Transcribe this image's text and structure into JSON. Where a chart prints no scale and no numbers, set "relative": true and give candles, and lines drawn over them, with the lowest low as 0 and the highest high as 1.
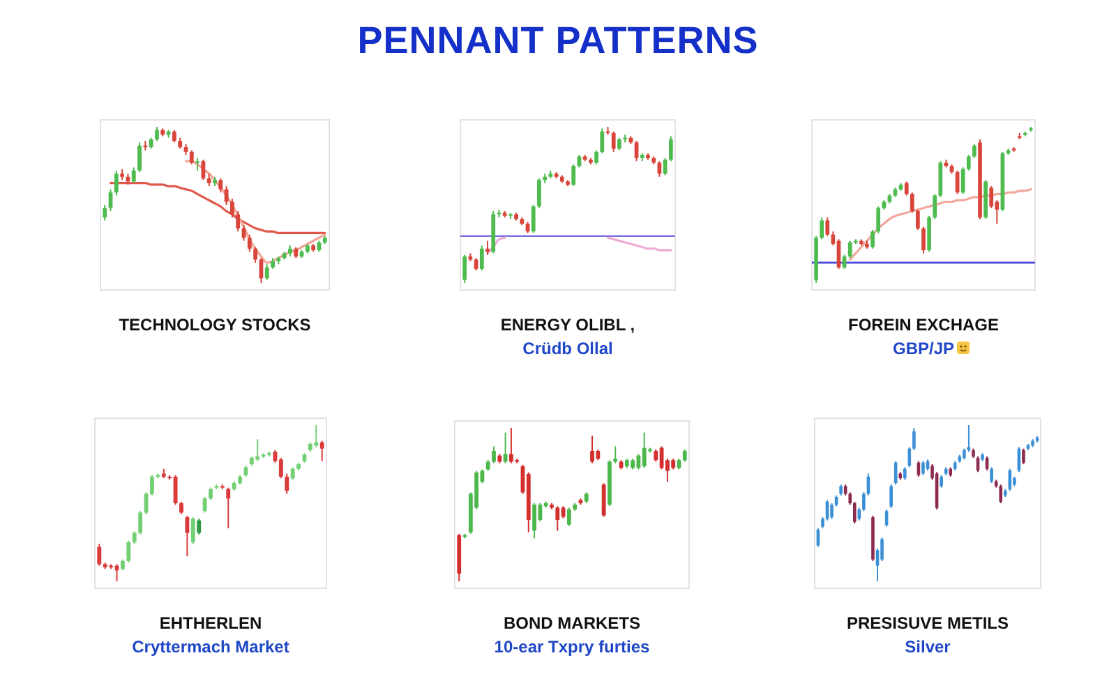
{
  "chart_data": [
    {
      "type": "other",
      "title": "PENNANT PATTERNS"
    },
    {
      "type": "candlestick",
      "title": "TECHNOLOGY STOCKS",
      "relative": true,
      "categories": [
        null,
        null,
        null,
        null,
        null,
        null,
        null,
        null,
        null,
        null,
        null,
        null,
        null,
        null,
        null,
        null,
        null,
        null,
        null,
        null,
        null,
        null,
        null,
        null,
        null,
        null,
        null,
        null,
        null,
        null,
        null,
        null,
        null,
        null,
        null,
        null,
        null,
        null,
        null
      ],
      "ohlc": [
        [
          0.42,
          0.5,
          0.4,
          0.48
        ],
        [
          0.48,
          0.6,
          0.46,
          0.58
        ],
        [
          0.58,
          0.72,
          0.56,
          0.7
        ],
        [
          0.7,
          0.73,
          0.66,
          0.68
        ],
        [
          0.68,
          0.7,
          0.63,
          0.65
        ],
        [
          0.65,
          0.74,
          0.64,
          0.72
        ],
        [
          0.72,
          0.9,
          0.71,
          0.88
        ],
        [
          0.88,
          0.91,
          0.85,
          0.87
        ],
        [
          0.87,
          0.93,
          0.86,
          0.92
        ],
        [
          0.92,
          1.0,
          0.91,
          0.98
        ],
        [
          0.98,
          0.99,
          0.94,
          0.95
        ],
        [
          0.95,
          0.98,
          0.93,
          0.97
        ],
        [
          0.97,
          0.98,
          0.9,
          0.91
        ],
        [
          0.91,
          0.93,
          0.86,
          0.87
        ],
        [
          0.87,
          0.89,
          0.82,
          0.84
        ],
        [
          0.84,
          0.85,
          0.76,
          0.77
        ],
        [
          0.77,
          0.8,
          0.72,
          0.78
        ],
        [
          0.78,
          0.79,
          0.66,
          0.67
        ],
        [
          0.67,
          0.7,
          0.62,
          0.64
        ],
        [
          0.64,
          0.68,
          0.62,
          0.66
        ],
        [
          0.66,
          0.67,
          0.58,
          0.6
        ],
        [
          0.6,
          0.62,
          0.5,
          0.52
        ],
        [
          0.52,
          0.54,
          0.42,
          0.44
        ],
        [
          0.44,
          0.46,
          0.33,
          0.35
        ],
        [
          0.35,
          0.37,
          0.27,
          0.29
        ],
        [
          0.29,
          0.31,
          0.2,
          0.22
        ],
        [
          0.22,
          0.23,
          0.13,
          0.15
        ],
        [
          0.15,
          0.16,
          0.0,
          0.03
        ],
        [
          0.03,
          0.12,
          0.02,
          0.1
        ],
        [
          0.1,
          0.16,
          0.09,
          0.14
        ],
        [
          0.14,
          0.17,
          0.12,
          0.16
        ],
        [
          0.16,
          0.2,
          0.15,
          0.19
        ],
        [
          0.19,
          0.24,
          0.17,
          0.22
        ],
        [
          0.22,
          0.23,
          0.16,
          0.17
        ],
        [
          0.17,
          0.21,
          0.16,
          0.2
        ],
        [
          0.2,
          0.25,
          0.19,
          0.24
        ],
        [
          0.24,
          0.25,
          0.2,
          0.21
        ],
        [
          0.21,
          0.27,
          0.2,
          0.26
        ],
        [
          0.26,
          0.3,
          0.25,
          0.29
        ]
      ],
      "colors": [
        "#4dbb4d",
        "#4dbb4d",
        "#4dbb4d",
        "#d9453a",
        "#d9453a",
        "#4dbb4d",
        "#4dbb4d",
        "#d9453a",
        "#4dbb4d",
        "#4dbb4d",
        "#d9453a",
        "#4dbb4d",
        "#d9453a",
        "#d9453a",
        "#d9453a",
        "#d9453a",
        "#4dbb4d",
        "#d9453a",
        "#d9453a",
        "#4dbb4d",
        "#d9453a",
        "#d9453a",
        "#d9453a",
        "#d9453a",
        "#d9453a",
        "#d9453a",
        "#d9453a",
        "#d9453a",
        "#4dbb4d",
        "#4dbb4d",
        "#4dbb4d",
        "#4dbb4d",
        "#4dbb4d",
        "#d9453a",
        "#4dbb4d",
        "#4dbb4d",
        "#d9453a",
        "#4dbb4d",
        "#4dbb4d"
      ],
      "series": [
        {
          "type": "line",
          "color": "#e0574c",
          "values": [
            null,
            0.64,
            0.64,
            0.64,
            0.64,
            0.64,
            0.64,
            0.64,
            0.63,
            0.63,
            0.63,
            0.62,
            0.62,
            0.61,
            0.6,
            0.59,
            0.57,
            0.55,
            0.53,
            0.51,
            0.49,
            0.46,
            0.44,
            0.41,
            0.39,
            0.37,
            0.35,
            0.34,
            0.33,
            0.33,
            0.32,
            0.32,
            0.32,
            0.32,
            0.32,
            0.32,
            0.32,
            0.32,
            0.32
          ]
        },
        {
          "type": "line",
          "color": "#f0a596",
          "values": [
            null,
            null,
            null,
            null,
            null,
            null,
            null,
            null,
            null,
            null,
            null,
            null,
            null,
            null,
            0.78,
            0.78,
            0.76,
            0.73,
            0.7,
            0.66,
            0.61,
            0.56,
            0.5,
            0.43,
            0.36,
            0.28,
            0.22,
            0.17,
            0.13,
            0.14,
            0.16,
            0.18,
            0.2,
            0.21,
            0.23,
            0.25,
            0.27,
            0.29,
            0.31
          ]
        }
      ]
    },
    {
      "type": "candlestick",
      "title": "ENERGY OLIBL ,",
      "subtitle": "Crüdb Ollal",
      "relative": true,
      "categories": [
        null,
        null,
        null,
        null,
        null,
        null,
        null,
        null,
        null,
        null,
        null,
        null,
        null,
        null,
        null,
        null,
        null,
        null,
        null,
        null,
        null,
        null,
        null,
        null,
        null,
        null,
        null,
        null,
        null,
        null,
        null,
        null,
        null,
        null,
        null,
        null,
        null
      ],
      "ohlc": [
        [
          0.02,
          0.18,
          0.0,
          0.17
        ],
        [
          0.17,
          0.19,
          0.14,
          0.15
        ],
        [
          0.15,
          0.16,
          0.08,
          0.09
        ],
        [
          0.09,
          0.24,
          0.08,
          0.22
        ],
        [
          0.22,
          0.27,
          0.18,
          0.2
        ],
        [
          0.2,
          0.46,
          0.19,
          0.44
        ],
        [
          0.44,
          0.47,
          0.42,
          0.45
        ],
        [
          0.45,
          0.46,
          0.42,
          0.43
        ],
        [
          0.43,
          0.45,
          0.41,
          0.44
        ],
        [
          0.44,
          0.45,
          0.4,
          0.41
        ],
        [
          0.41,
          0.42,
          0.37,
          0.38
        ],
        [
          0.38,
          0.39,
          0.32,
          0.33
        ],
        [
          0.33,
          0.5,
          0.32,
          0.49
        ],
        [
          0.49,
          0.67,
          0.48,
          0.66
        ],
        [
          0.66,
          0.7,
          0.64,
          0.68
        ],
        [
          0.68,
          0.72,
          0.67,
          0.7
        ],
        [
          0.7,
          0.71,
          0.67,
          0.68
        ],
        [
          0.68,
          0.69,
          0.64,
          0.65
        ],
        [
          0.65,
          0.66,
          0.62,
          0.63
        ],
        [
          0.63,
          0.76,
          0.62,
          0.75
        ],
        [
          0.75,
          0.82,
          0.74,
          0.81
        ],
        [
          0.81,
          0.82,
          0.78,
          0.79
        ],
        [
          0.79,
          0.8,
          0.76,
          0.77
        ],
        [
          0.77,
          0.85,
          0.76,
          0.84
        ],
        [
          0.84,
          0.99,
          0.83,
          0.97
        ],
        [
          0.97,
          1.0,
          0.95,
          0.96
        ],
        [
          0.96,
          0.97,
          0.84,
          0.86
        ],
        [
          0.86,
          0.93,
          0.85,
          0.92
        ],
        [
          0.92,
          0.95,
          0.9,
          0.93
        ],
        [
          0.93,
          0.94,
          0.89,
          0.9
        ],
        [
          0.9,
          0.91,
          0.78,
          0.8
        ],
        [
          0.8,
          0.83,
          0.78,
          0.82
        ],
        [
          0.82,
          0.83,
          0.79,
          0.8
        ],
        [
          0.8,
          0.81,
          0.76,
          0.77
        ],
        [
          0.77,
          0.78,
          0.68,
          0.7
        ],
        [
          0.7,
          0.8,
          0.69,
          0.79
        ],
        [
          0.79,
          0.94,
          0.78,
          0.92
        ]
      ],
      "colors": [
        "#4dbb4d",
        "#d9453a",
        "#d9453a",
        "#4dbb4d",
        "#d9453a",
        "#4dbb4d",
        "#4dbb4d",
        "#d9453a",
        "#4dbb4d",
        "#d9453a",
        "#d9453a",
        "#d9453a",
        "#4dbb4d",
        "#4dbb4d",
        "#4dbb4d",
        "#4dbb4d",
        "#d9453a",
        "#d9453a",
        "#d9453a",
        "#4dbb4d",
        "#4dbb4d",
        "#d9453a",
        "#d9453a",
        "#4dbb4d",
        "#4dbb4d",
        "#d9453a",
        "#d9453a",
        "#4dbb4d",
        "#4dbb4d",
        "#d9453a",
        "#d9453a",
        "#4dbb4d",
        "#d9453a",
        "#d9453a",
        "#d9453a",
        "#4dbb4d",
        "#4dbb4d"
      ],
      "series": [
        {
          "type": "line",
          "color": "#eeaad6",
          "values": [
            null,
            null,
            null,
            null,
            0.19,
            0.23,
            0.28,
            0.29,
            null,
            null,
            null,
            null,
            null,
            null,
            null,
            null,
            null,
            null,
            null,
            null,
            null,
            null,
            null,
            null,
            null,
            0.29,
            0.28,
            0.27,
            0.26,
            0.25,
            0.24,
            0.23,
            0.22,
            0.22,
            0.21,
            0.21,
            0.21
          ]
        }
      ],
      "ref_lines": [
        {
          "axis": "y",
          "value": 0.3,
          "color": "#7a6ee0"
        }
      ]
    },
    {
      "type": "candlestick",
      "title": "FOREIN EXCHAGE",
      "subtitle": "GBP/JP",
      "relative": true,
      "categories": [
        null,
        null,
        null,
        null,
        null,
        null,
        null,
        null,
        null,
        null,
        null,
        null,
        null,
        null,
        null,
        null,
        null,
        null,
        null,
        null,
        null,
        null,
        null,
        null,
        null,
        null,
        null,
        null,
        null,
        null,
        null,
        null,
        null,
        null,
        null,
        null,
        null,
        null,
        null
      ],
      "ohlc": [
        [
          0.02,
          0.3,
          0.0,
          0.29
        ],
        [
          0.29,
          0.42,
          0.28,
          0.4
        ],
        [
          0.4,
          0.42,
          0.3,
          0.31
        ],
        [
          0.31,
          0.33,
          0.24,
          0.25
        ],
        [
          0.27,
          0.28,
          0.09,
          0.1
        ],
        [
          0.1,
          0.18,
          0.09,
          0.17
        ],
        [
          0.17,
          0.27,
          0.16,
          0.26
        ],
        [
          0.26,
          0.28,
          0.25,
          0.27
        ],
        [
          0.27,
          0.28,
          0.24,
          0.25
        ],
        [
          0.25,
          0.27,
          0.22,
          0.23
        ],
        [
          0.23,
          0.34,
          0.22,
          0.33
        ],
        [
          0.33,
          0.49,
          0.32,
          0.48
        ],
        [
          0.48,
          0.53,
          0.47,
          0.52
        ],
        [
          0.52,
          0.57,
          0.51,
          0.56
        ],
        [
          0.56,
          0.61,
          0.55,
          0.6
        ],
        [
          0.6,
          0.64,
          0.59,
          0.63
        ],
        [
          0.64,
          0.65,
          0.56,
          0.57
        ],
        [
          0.57,
          0.58,
          0.45,
          0.46
        ],
        [
          0.46,
          0.47,
          0.34,
          0.35
        ],
        [
          0.35,
          0.36,
          0.19,
          0.21
        ],
        [
          0.21,
          0.43,
          0.2,
          0.42
        ],
        [
          0.42,
          0.57,
          0.41,
          0.56
        ],
        [
          0.56,
          0.78,
          0.55,
          0.77
        ],
        [
          0.77,
          0.79,
          0.74,
          0.75
        ],
        [
          0.75,
          0.76,
          0.7,
          0.71
        ],
        [
          0.71,
          0.72,
          0.57,
          0.58
        ],
        [
          0.58,
          0.74,
          0.57,
          0.73
        ],
        [
          0.73,
          0.82,
          0.72,
          0.81
        ],
        [
          0.81,
          0.89,
          0.8,
          0.88
        ],
        [
          0.9,
          0.92,
          0.41,
          0.42
        ],
        [
          0.42,
          0.66,
          0.41,
          0.65
        ],
        [
          0.61,
          0.62,
          0.48,
          0.49
        ],
        [
          0.52,
          0.53,
          0.38,
          0.47
        ],
        [
          0.47,
          0.84,
          0.46,
          0.83
        ],
        [
          0.83,
          0.86,
          0.82,
          0.85
        ],
        [
          0.86,
          0.87,
          0.84,
          0.85
        ],
        [
          0.94,
          0.96,
          0.92,
          0.93
        ],
        [
          0.95,
          0.97,
          0.94,
          0.96
        ],
        [
          0.98,
          1.0,
          0.97,
          0.99
        ]
      ],
      "colors": [
        "#4dbb4d",
        "#4dbb4d",
        "#d9453a",
        "#d9453a",
        "#d9453a",
        "#4dbb4d",
        "#4dbb4d",
        "#4dbb4d",
        "#d9453a",
        "#d9453a",
        "#4dbb4d",
        "#4dbb4d",
        "#4dbb4d",
        "#4dbb4d",
        "#4dbb4d",
        "#4dbb4d",
        "#d9453a",
        "#d9453a",
        "#d9453a",
        "#d9453a",
        "#4dbb4d",
        "#4dbb4d",
        "#4dbb4d",
        "#d9453a",
        "#d9453a",
        "#d9453a",
        "#4dbb4d",
        "#4dbb4d",
        "#4dbb4d",
        "#d9453a",
        "#4dbb4d",
        "#d9453a",
        "#d9453a",
        "#4dbb4d",
        "#4dbb4d",
        "#d9453a",
        "#d9453a",
        "#4dbb4d",
        "#4dbb4d"
      ],
      "series": [
        {
          "type": "line",
          "color": "#f2a79c",
          "values": [
            null,
            null,
            null,
            null,
            null,
            null,
            0.15,
            0.19,
            0.23,
            0.27,
            0.31,
            0.35,
            0.38,
            0.41,
            0.43,
            0.44,
            0.45,
            0.46,
            0.47,
            0.48,
            0.49,
            0.5,
            0.51,
            0.52,
            0.52,
            0.53,
            0.53,
            0.54,
            0.55,
            0.55,
            0.56,
            0.56,
            0.57,
            0.57,
            0.58,
            0.58,
            0.59,
            0.59,
            0.6
          ]
        }
      ],
      "ref_lines": [
        {
          "axis": "y",
          "value": 0.13,
          "color": "#4a4ae0"
        }
      ]
    },
    {
      "type": "candlestick",
      "title": "EHTHERLEN",
      "subtitle": "Cryttermach Market",
      "relative": true,
      "categories": [
        null,
        null,
        null,
        null,
        null,
        null,
        null,
        null,
        null,
        null,
        null,
        null,
        null,
        null,
        null,
        null,
        null,
        null,
        null,
        null,
        null,
        null,
        null,
        null,
        null,
        null,
        null,
        null,
        null,
        null,
        null,
        null,
        null,
        null,
        null,
        null,
        null,
        null,
        null
      ],
      "ohlc": [
        [
          0.22,
          0.24,
          0.1,
          0.11
        ],
        [
          0.11,
          0.12,
          0.08,
          0.09
        ],
        [
          0.1,
          0.11,
          0.08,
          0.09
        ],
        [
          0.1,
          0.11,
          0.0,
          0.07
        ],
        [
          0.08,
          0.14,
          0.07,
          0.13
        ],
        [
          0.13,
          0.26,
          0.12,
          0.25
        ],
        [
          0.25,
          0.32,
          0.24,
          0.31
        ],
        [
          0.31,
          0.45,
          0.3,
          0.44
        ],
        [
          0.44,
          0.57,
          0.43,
          0.56
        ],
        [
          0.56,
          0.68,
          0.55,
          0.67
        ],
        [
          0.67,
          0.69,
          0.66,
          0.68
        ],
        [
          0.69,
          0.72,
          0.66,
          0.67
        ],
        [
          0.67,
          0.68,
          0.65,
          0.66
        ],
        [
          0.67,
          0.68,
          0.49,
          0.5
        ],
        [
          0.5,
          0.51,
          0.43,
          0.44
        ],
        [
          0.41,
          0.42,
          0.16,
          0.31
        ],
        [
          0.25,
          0.41,
          0.24,
          0.4
        ],
        [
          0.31,
          0.4,
          0.3,
          0.39
        ],
        [
          0.45,
          0.54,
          0.44,
          0.53
        ],
        [
          0.53,
          0.6,
          0.52,
          0.59
        ],
        [
          0.6,
          0.62,
          0.59,
          0.61
        ],
        [
          0.61,
          0.62,
          0.59,
          0.6
        ],
        [
          0.59,
          0.6,
          0.34,
          0.53
        ],
        [
          0.59,
          0.64,
          0.58,
          0.63
        ],
        [
          0.63,
          0.68,
          0.62,
          0.67
        ],
        [
          0.68,
          0.74,
          0.67,
          0.73
        ],
        [
          0.75,
          0.8,
          0.74,
          0.79
        ],
        [
          0.78,
          0.91,
          0.77,
          0.8
        ],
        [
          0.8,
          0.82,
          0.79,
          0.81
        ],
        [
          0.81,
          0.83,
          0.8,
          0.82
        ],
        [
          0.83,
          0.84,
          0.76,
          0.77
        ],
        [
          0.78,
          0.79,
          0.66,
          0.67
        ],
        [
          0.67,
          0.69,
          0.56,
          0.58
        ],
        [
          0.66,
          0.73,
          0.65,
          0.72
        ],
        [
          0.72,
          0.76,
          0.71,
          0.75
        ],
        [
          0.77,
          0.82,
          0.76,
          0.81
        ],
        [
          0.84,
          0.89,
          0.83,
          0.88
        ],
        [
          0.87,
          1.0,
          0.86,
          0.89
        ],
        [
          0.89,
          0.9,
          0.77,
          0.85
        ]
      ],
      "colors": [
        "#d93a3a",
        "#d93a3a",
        "#d93a3a",
        "#d93a3a",
        "#74d074",
        "#74d074",
        "#74d074",
        "#74d074",
        "#74d074",
        "#74d074",
        "#74d074",
        "#d93a3a",
        "#d93a3a",
        "#d93a3a",
        "#d93a3a",
        "#d93a3a",
        "#74d074",
        "#2f9a44",
        "#74d074",
        "#74d074",
        "#74d074",
        "#d93a3a",
        "#d93a3a",
        "#74d074",
        "#74d074",
        "#74d074",
        "#74d074",
        "#74d074",
        "#74d074",
        "#74d074",
        "#d93a3a",
        "#d93a3a",
        "#d93a3a",
        "#74d074",
        "#74d074",
        "#74d074",
        "#74d074",
        "#74d074",
        "#d93a3a"
      ]
    },
    {
      "type": "candlestick",
      "title": "BOND MARKETS",
      "subtitle": "10-ear Txpry furties",
      "relative": true,
      "categories": [
        null,
        null,
        null,
        null,
        null,
        null,
        null,
        null,
        null,
        null,
        null,
        null,
        null,
        null,
        null,
        null,
        null,
        null,
        null,
        null,
        null,
        null,
        null,
        null,
        null,
        null,
        null,
        null,
        null,
        null,
        null,
        null,
        null,
        null,
        null,
        null,
        null,
        null,
        null,
        null
      ],
      "ohlc": [
        [
          0.3,
          0.31,
          0.0,
          0.05
        ],
        [
          0.29,
          0.31,
          0.28,
          0.3
        ],
        [
          0.32,
          0.58,
          0.31,
          0.57
        ],
        [
          0.48,
          0.72,
          0.47,
          0.71
        ],
        [
          0.65,
          0.73,
          0.64,
          0.72
        ],
        [
          0.73,
          0.79,
          0.72,
          0.78
        ],
        [
          0.78,
          0.88,
          0.77,
          0.85
        ],
        [
          0.82,
          0.83,
          0.77,
          0.78
        ],
        [
          0.78,
          0.97,
          0.77,
          0.83
        ],
        [
          0.83,
          1.0,
          0.77,
          0.78
        ],
        [
          0.79,
          0.8,
          0.77,
          0.78
        ],
        [
          0.75,
          0.76,
          0.57,
          0.58
        ],
        [
          0.7,
          0.71,
          0.32,
          0.4
        ],
        [
          0.33,
          0.51,
          0.28,
          0.5
        ],
        [
          0.4,
          0.51,
          0.39,
          0.5
        ],
        [
          0.49,
          0.52,
          0.48,
          0.51
        ],
        [
          0.5,
          0.51,
          0.47,
          0.48
        ],
        [
          0.48,
          0.49,
          0.33,
          0.4
        ],
        [
          0.48,
          0.49,
          0.41,
          0.42
        ],
        [
          0.37,
          0.48,
          0.36,
          0.47
        ],
        [
          0.47,
          0.51,
          0.46,
          0.5
        ],
        [
          0.53,
          0.54,
          0.5,
          0.51
        ],
        [
          0.52,
          0.58,
          0.51,
          0.57
        ],
        [
          0.85,
          0.95,
          0.77,
          0.78
        ],
        [
          0.85,
          0.86,
          0.79,
          0.8
        ],
        [
          0.63,
          0.64,
          0.42,
          0.43
        ],
        [
          0.5,
          0.79,
          0.49,
          0.78
        ],
        [
          0.78,
          0.88,
          0.77,
          0.8
        ],
        [
          0.78,
          0.79,
          0.73,
          0.74
        ],
        [
          0.75,
          0.8,
          0.74,
          0.79
        ],
        [
          0.74,
          0.8,
          0.73,
          0.79
        ],
        [
          0.74,
          0.83,
          0.73,
          0.82
        ],
        [
          0.75,
          0.97,
          0.74,
          0.87
        ],
        [
          0.85,
          0.87,
          0.84,
          0.86
        ],
        [
          0.85,
          0.86,
          0.78,
          0.79
        ],
        [
          0.87,
          0.88,
          0.73,
          0.74
        ],
        [
          0.79,
          0.8,
          0.65,
          0.72
        ],
        [
          0.79,
          0.8,
          0.73,
          0.74
        ],
        [
          0.74,
          0.8,
          0.73,
          0.79
        ],
        [
          0.79,
          0.86,
          0.78,
          0.85
        ]
      ],
      "colors": [
        "#d32f2f",
        "#4cb84c",
        "#4cb84c",
        "#4cb84c",
        "#4cb84c",
        "#4cb84c",
        "#4cb84c",
        "#d32f2f",
        "#4cb84c",
        "#d32f2f",
        "#d32f2f",
        "#d32f2f",
        "#d32f2f",
        "#4cb84c",
        "#4cb84c",
        "#4cb84c",
        "#d32f2f",
        "#d32f2f",
        "#d32f2f",
        "#4cb84c",
        "#4cb84c",
        "#d32f2f",
        "#4cb84c",
        "#d32f2f",
        "#d32f2f",
        "#d32f2f",
        "#4cb84c",
        "#4cb84c",
        "#d32f2f",
        "#4cb84c",
        "#4cb84c",
        "#4cb84c",
        "#4cb84c",
        "#4cb84c",
        "#d32f2f",
        "#d32f2f",
        "#d32f2f",
        "#d32f2f",
        "#4cb84c",
        "#4cb84c"
      ]
    },
    {
      "type": "candlestick",
      "title": "PRESISUVE METILS",
      "subtitle": "Silver",
      "relative": true,
      "categories": [
        null,
        null,
        null,
        null,
        null,
        null,
        null,
        null,
        null,
        null,
        null,
        null,
        null,
        null,
        null,
        null,
        null,
        null,
        null,
        null,
        null,
        null,
        null,
        null,
        null,
        null,
        null,
        null,
        null,
        null,
        null,
        null,
        null,
        null,
        null,
        null,
        null,
        null,
        null,
        null,
        null,
        null,
        null,
        null,
        null,
        null,
        null,
        null,
        null
      ],
      "ohlc": [
        [
          0.23,
          0.34,
          0.22,
          0.33
        ],
        [
          0.35,
          0.41,
          0.34,
          0.4
        ],
        [
          0.4,
          0.52,
          0.39,
          0.51
        ],
        [
          0.41,
          0.5,
          0.4,
          0.49
        ],
        [
          0.49,
          0.55,
          0.48,
          0.54
        ],
        [
          0.56,
          0.62,
          0.55,
          0.61
        ],
        [
          0.61,
          0.62,
          0.55,
          0.56
        ],
        [
          0.56,
          0.57,
          0.49,
          0.5
        ],
        [
          0.5,
          0.51,
          0.37,
          0.38
        ],
        [
          0.4,
          0.47,
          0.39,
          0.46
        ],
        [
          0.46,
          0.57,
          0.45,
          0.56
        ],
        [
          0.56,
          0.69,
          0.55,
          0.67
        ],
        [
          0.41,
          0.42,
          0.13,
          0.14
        ],
        [
          0.1,
          0.21,
          0.0,
          0.2
        ],
        [
          0.14,
          0.28,
          0.13,
          0.27
        ],
        [
          0.36,
          0.46,
          0.35,
          0.45
        ],
        [
          0.48,
          0.62,
          0.47,
          0.61
        ],
        [
          0.63,
          0.77,
          0.62,
          0.76
        ],
        [
          0.69,
          0.7,
          0.65,
          0.66
        ],
        [
          0.66,
          0.73,
          0.65,
          0.72
        ],
        [
          0.74,
          0.86,
          0.73,
          0.85
        ],
        [
          0.85,
          0.98,
          0.84,
          0.96
        ],
        [
          0.76,
          0.77,
          0.67,
          0.68
        ],
        [
          0.69,
          0.77,
          0.68,
          0.76
        ],
        [
          0.72,
          0.78,
          0.71,
          0.77
        ],
        [
          0.74,
          0.75,
          0.65,
          0.66
        ],
        [
          0.69,
          0.7,
          0.46,
          0.47
        ],
        [
          0.61,
          0.68,
          0.6,
          0.67
        ],
        [
          0.69,
          0.73,
          0.68,
          0.72
        ],
        [
          0.72,
          0.73,
          0.67,
          0.68
        ],
        [
          0.72,
          0.77,
          0.71,
          0.76
        ],
        [
          0.77,
          0.81,
          0.76,
          0.8
        ],
        [
          0.79,
          0.85,
          0.78,
          0.84
        ],
        [
          0.84,
          1.0,
          0.83,
          0.86
        ],
        [
          0.84,
          0.85,
          0.79,
          0.8
        ],
        [
          0.79,
          0.8,
          0.7,
          0.71
        ],
        [
          0.78,
          0.82,
          0.77,
          0.81
        ],
        [
          0.79,
          0.8,
          0.71,
          0.72
        ],
        [
          0.64,
          0.73,
          0.63,
          0.72
        ],
        [
          0.64,
          0.65,
          0.6,
          0.61
        ],
        [
          0.61,
          0.62,
          0.5,
          0.51
        ],
        [
          0.55,
          0.59,
          0.54,
          0.58
        ],
        [
          0.59,
          0.72,
          0.58,
          0.71
        ],
        [
          0.62,
          0.67,
          0.61,
          0.66
        ],
        [
          0.71,
          0.86,
          0.7,
          0.85
        ],
        [
          0.84,
          0.85,
          0.75,
          0.76
        ],
        [
          0.85,
          0.88,
          0.84,
          0.87
        ],
        [
          0.87,
          0.91,
          0.86,
          0.9
        ],
        [
          0.9,
          0.93,
          0.89,
          0.92
        ]
      ],
      "colors": [
        "#3a8fd6",
        "#3a8fd6",
        "#3a8fd6",
        "#3a8fd6",
        "#3a8fd6",
        "#3a8fd6",
        "#8c2a50",
        "#8c2a50",
        "#8c2a50",
        "#3a8fd6",
        "#3a8fd6",
        "#3a8fd6",
        "#8c2a50",
        "#3a8fd6",
        "#3a8fd6",
        "#3a8fd6",
        "#3a8fd6",
        "#3a8fd6",
        "#8c2a50",
        "#3a8fd6",
        "#3a8fd6",
        "#3a8fd6",
        "#8c2a50",
        "#3a8fd6",
        "#3a8fd6",
        "#8c2a50",
        "#8c2a50",
        "#3a8fd6",
        "#3a8fd6",
        "#8c2a50",
        "#3a8fd6",
        "#3a8fd6",
        "#3a8fd6",
        "#3a8fd6",
        "#8c2a50",
        "#8c2a50",
        "#3a8fd6",
        "#8c2a50",
        "#3a8fd6",
        "#8c2a50",
        "#8c2a50",
        "#3a8fd6",
        "#3a8fd6",
        "#3a8fd6",
        "#3a8fd6",
        "#8c2a50",
        "#3a8fd6",
        "#3a8fd6",
        "#3a8fd6"
      ]
    }
  ]
}
